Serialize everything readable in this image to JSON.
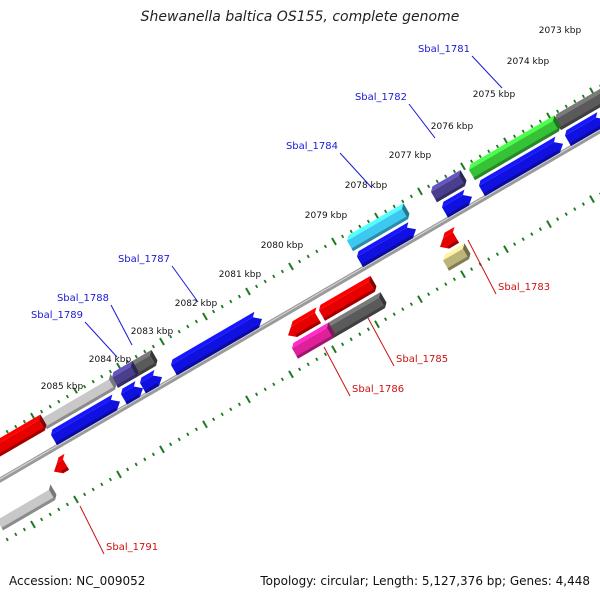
{
  "title": "Shewanella baltica OS155, complete genome",
  "accession_text": "Accession: NC_009052",
  "summary_text": "Topology: circular; Length: 5,127,376 bp; Genes: 4,448",
  "colors": {
    "backbone": "#8a8a8a",
    "tick": "#1f7a1f",
    "forward_label": "#1a1ad6",
    "reverse_label": "#cc1111"
  },
  "scale_ticks": [
    "2073 kbp",
    "2074 kbp",
    "2075 kbp",
    "2076 kbp",
    "2077 kbp",
    "2078 kbp",
    "2079 kbp",
    "2080 kbp",
    "2081 kbp",
    "2082 kbp",
    "2083 kbp",
    "2084 kbp",
    "2085 kbp"
  ],
  "forward_labels": [
    "Sbal_1781",
    "Sbal_1782",
    "Sbal_1784",
    "Sbal_1787",
    "Sbal_1788",
    "Sbal_1789"
  ],
  "reverse_labels": [
    "Sbal_1783",
    "Sbal_1785",
    "Sbal_1786",
    "Sbal_1791"
  ],
  "feature_colors": [
    "#e60000",
    "#5a5a5a",
    "#4a3f8f",
    "#1010e0",
    "#36c236",
    "#3cc8f0",
    "#e0209a",
    "#bdb47a",
    "#c8c8c8"
  ]
}
